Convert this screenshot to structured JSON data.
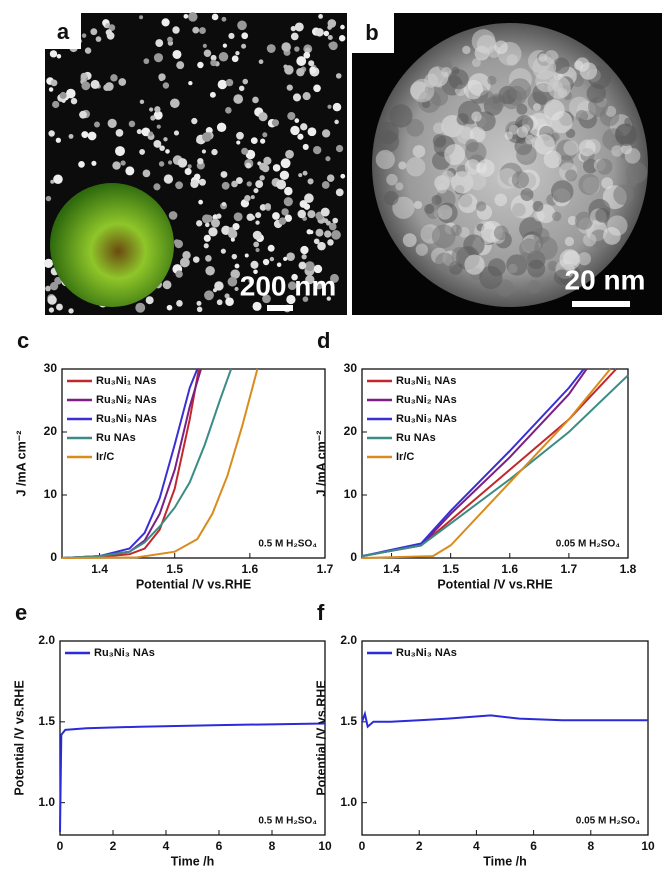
{
  "images": [
    {
      "label": "a",
      "scale": "200 nm"
    },
    {
      "label": "b",
      "scale": "20 nm"
    }
  ],
  "chart_data": [
    {
      "type": "line",
      "panel_label": "c",
      "xlabel": "Potential /V vs.RHE",
      "ylabel": "J /mA cm⁻²",
      "annotation": "0.5 M H₂SO₄",
      "xlim": [
        1.35,
        1.7
      ],
      "xticks": [
        1.4,
        1.5,
        1.6,
        1.7
      ],
      "ylim": [
        0,
        30
      ],
      "yticks": [
        0,
        10,
        20,
        30
      ],
      "series": [
        {
          "name": "Ru₃Ni₁ NAs",
          "color": "#c0282d",
          "x": [
            1.35,
            1.4,
            1.44,
            1.46,
            1.48,
            1.5,
            1.52,
            1.532
          ],
          "values": [
            0,
            0.2,
            0.6,
            1.5,
            4.5,
            11,
            22,
            30
          ]
        },
        {
          "name": "Ru₃Ni₂ NAs",
          "color": "#7b1f86",
          "x": [
            1.35,
            1.4,
            1.44,
            1.46,
            1.48,
            1.5,
            1.52,
            1.535
          ],
          "values": [
            0,
            0.3,
            1,
            2.8,
            7,
            14,
            24,
            30
          ]
        },
        {
          "name": "Ru₃Ni₃ NAs",
          "color": "#3a2fd6",
          "x": [
            1.35,
            1.4,
            1.44,
            1.46,
            1.48,
            1.5,
            1.52,
            1.53
          ],
          "values": [
            0,
            0.3,
            1.5,
            4,
            9.5,
            18,
            27,
            30
          ]
        },
        {
          "name": "Ru NAs",
          "color": "#3c8c86",
          "x": [
            1.35,
            1.4,
            1.44,
            1.46,
            1.48,
            1.5,
            1.52,
            1.54,
            1.56,
            1.575
          ],
          "values": [
            0,
            0.3,
            1,
            2.5,
            5,
            8,
            12,
            18,
            25,
            30
          ]
        },
        {
          "name": "Ir/C",
          "color": "#d98b1c",
          "x": [
            1.35,
            1.45,
            1.5,
            1.53,
            1.55,
            1.57,
            1.59,
            1.61
          ],
          "values": [
            0,
            0.1,
            1,
            3,
            7,
            13,
            21,
            30
          ]
        }
      ]
    },
    {
      "type": "line",
      "panel_label": "d",
      "xlabel": "Potential /V vs.RHE",
      "ylabel": "J /mA cm⁻²",
      "annotation": "0.05 M H₂SO₄",
      "xlim": [
        1.35,
        1.8
      ],
      "xticks": [
        1.4,
        1.5,
        1.6,
        1.7,
        1.8
      ],
      "ylim": [
        0,
        30
      ],
      "yticks": [
        0,
        10,
        20,
        30
      ],
      "series": [
        {
          "name": "Ru₃Ni₁ NAs",
          "color": "#c0282d",
          "x": [
            1.35,
            1.45,
            1.5,
            1.6,
            1.7,
            1.76,
            1.78
          ],
          "values": [
            0.3,
            2,
            6,
            14,
            22,
            28,
            30
          ]
        },
        {
          "name": "Ru₃Ni₂ NAs",
          "color": "#7b1f86",
          "x": [
            1.35,
            1.45,
            1.5,
            1.6,
            1.7,
            1.73
          ],
          "values": [
            0.3,
            2,
            7,
            16,
            26,
            30
          ]
        },
        {
          "name": "Ru₃Ni₃ NAs",
          "color": "#3a2fd6",
          "x": [
            1.35,
            1.45,
            1.5,
            1.6,
            1.7,
            1.725
          ],
          "values": [
            0.3,
            2.3,
            7.5,
            17,
            27,
            30
          ]
        },
        {
          "name": "Ru NAs",
          "color": "#3c8c86",
          "x": [
            1.35,
            1.45,
            1.5,
            1.6,
            1.7,
            1.8
          ],
          "values": [
            0.3,
            2,
            5.5,
            12.5,
            20,
            29
          ]
        },
        {
          "name": "Ir/C",
          "color": "#d98b1c",
          "x": [
            1.35,
            1.47,
            1.5,
            1.6,
            1.7,
            1.77
          ],
          "values": [
            0,
            0.3,
            2,
            12,
            22,
            30
          ]
        }
      ]
    },
    {
      "type": "line",
      "panel_label": "e",
      "xlabel": "Time /h",
      "ylabel": "Potential /V vs.RHE",
      "annotation": "0.5 M H₂SO₄",
      "xlim": [
        0,
        10
      ],
      "xticks": [
        0,
        2,
        4,
        6,
        8,
        10
      ],
      "ylim": [
        0.8,
        2.0
      ],
      "yticks": [
        {
          "value": 1,
          "label": "1.0"
        },
        1.5,
        {
          "value": 2,
          "label": "2.0"
        }
      ],
      "series": [
        {
          "name": "Ru₃Ni₃ NAs",
          "color": "#2b2bd9",
          "x": [
            0,
            0.05,
            0.2,
            1,
            3,
            6,
            10
          ],
          "values": [
            0.82,
            1.42,
            1.45,
            1.46,
            1.47,
            1.48,
            1.49
          ]
        }
      ]
    },
    {
      "type": "line",
      "panel_label": "f",
      "xlabel": "Time /h",
      "ylabel": "Potential /V vs.RHE",
      "annotation": "0.05 M H₂SO₄",
      "xlim": [
        0,
        10
      ],
      "xticks": [
        0,
        2,
        4,
        6,
        8,
        10
      ],
      "ylim": [
        0.8,
        2.0
      ],
      "yticks": [
        {
          "value": 1,
          "label": "1.0"
        },
        1.5,
        {
          "value": 2,
          "label": "2.0"
        }
      ],
      "series": [
        {
          "name": "Ru₃Ni₃ NAs",
          "color": "#2b2bd9",
          "x": [
            0,
            0.1,
            0.2,
            0.4,
            1,
            2,
            3,
            4.5,
            5.5,
            7,
            10
          ],
          "values": [
            1.5,
            1.55,
            1.47,
            1.5,
            1.5,
            1.51,
            1.52,
            1.54,
            1.52,
            1.51,
            1.51
          ]
        }
      ]
    }
  ]
}
